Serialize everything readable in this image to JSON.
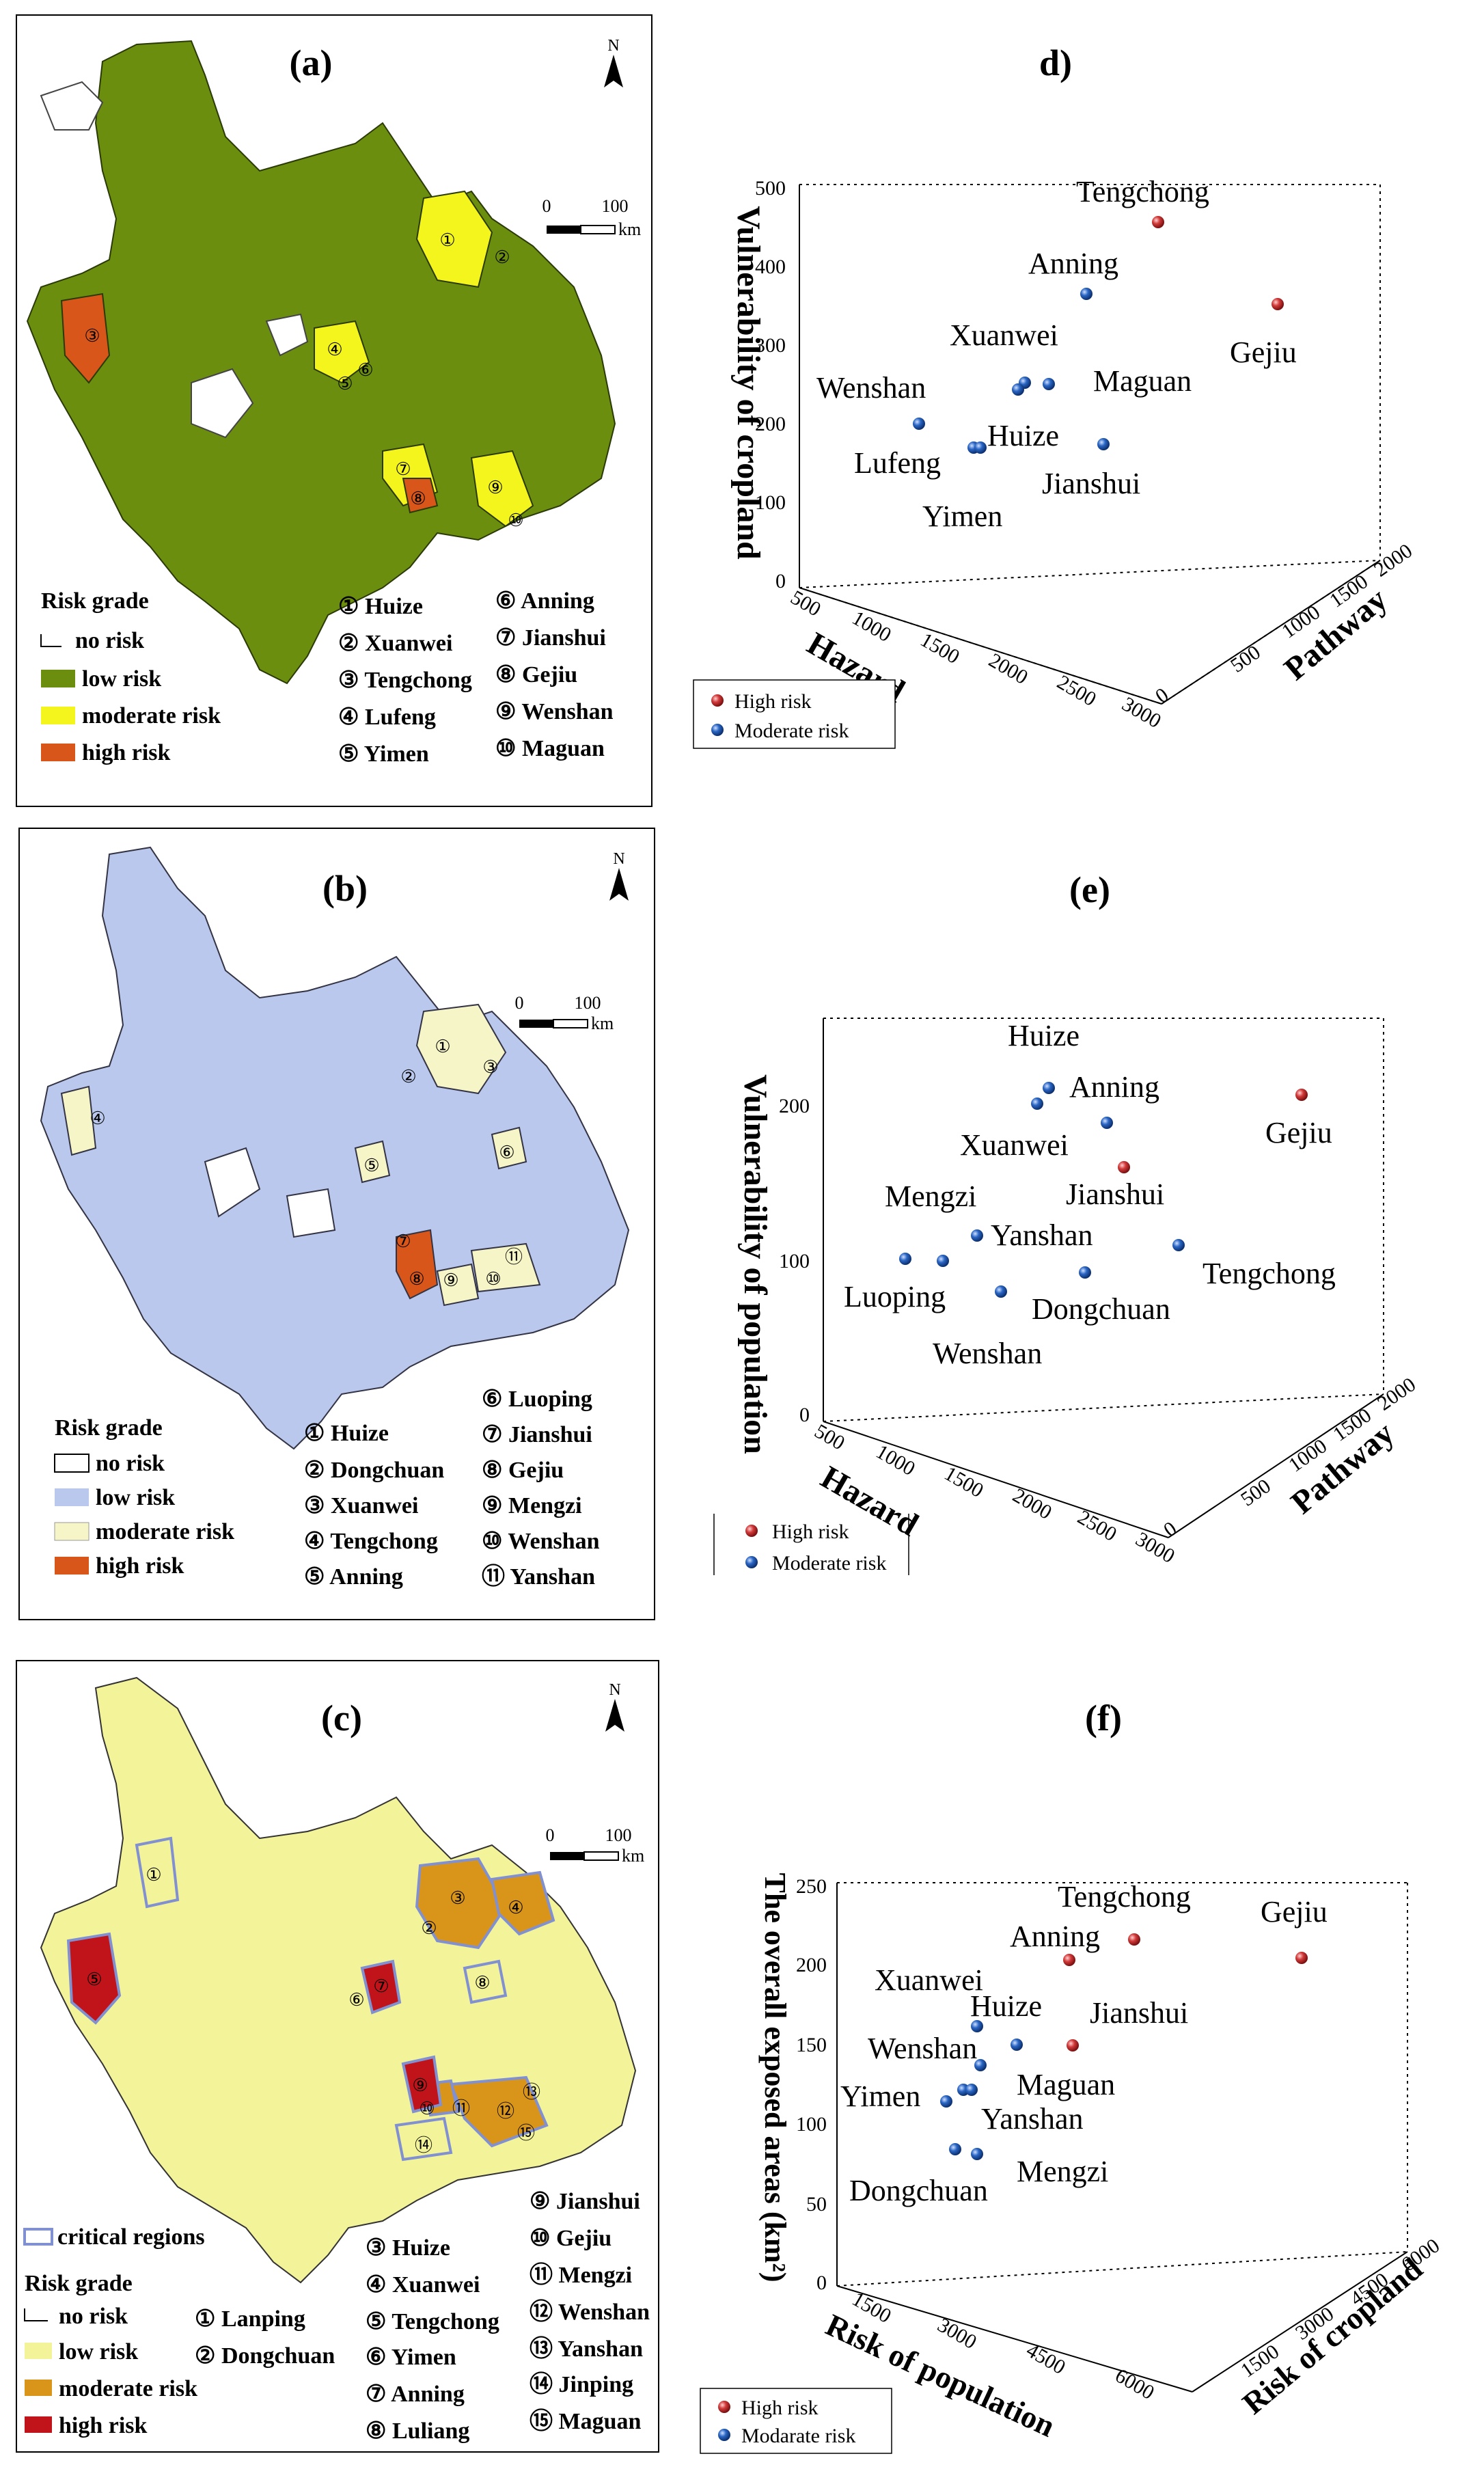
{
  "panels": {
    "a": {
      "tag": "(a)",
      "north": "N",
      "scale_zero": "0",
      "scale_value": "100",
      "scale_unit": "km",
      "legend_title": "Risk grade",
      "legend": [
        "no risk",
        "low risk",
        "moderate risk",
        "high risk"
      ],
      "places": [
        "① Huize",
        "② Xuanwei",
        "③ Tengchong",
        "④ Lufeng",
        "⑤ Yimen",
        "⑥ Anning",
        "⑦ Jianshui",
        "⑧ Gejiu",
        "⑨ Wenshan",
        "⑩ Maguan"
      ],
      "markers": [
        "①",
        "②",
        "③",
        "④",
        "⑤",
        "⑥",
        "⑦",
        "⑧",
        "⑨",
        "⑩"
      ]
    },
    "b": {
      "tag": "(b)",
      "north": "N",
      "scale_zero": "0",
      "scale_value": "100",
      "scale_unit": "km",
      "legend_title": "Risk grade",
      "legend": [
        "no risk",
        "low risk",
        "moderate risk",
        "high risk"
      ],
      "places": [
        "① Huize",
        "② Dongchuan",
        "③ Xuanwei",
        "④ Tengchong",
        "⑤ Anning",
        "⑥ Luoping",
        "⑦ Jianshui",
        "⑧ Gejiu",
        "⑨ Mengzi",
        "⑩ Wenshan",
        "⑪ Yanshan"
      ],
      "markers": [
        "①",
        "②",
        "③",
        "④",
        "⑤",
        "⑥",
        "⑦",
        "⑧",
        "⑨",
        "⑩",
        "⑪"
      ]
    },
    "c": {
      "tag": "(c)",
      "north": "N",
      "scale_zero": "0",
      "scale_value": "100",
      "scale_unit": "km",
      "critical": "critical regions",
      "legend_title": "Risk grade",
      "legend": [
        "no risk",
        "low risk",
        "moderate risk",
        "high risk"
      ],
      "places": [
        "① Lanping",
        "② Dongchuan",
        "③ Huize",
        "④ Xuanwei",
        "⑤ Tengchong",
        "⑥ Yimen",
        "⑦ Anning",
        "⑧ Luliang",
        "⑨ Jianshui",
        "⑩ Gejiu",
        "⑪ Mengzi",
        "⑫ Wenshan",
        "⑬ Yanshan",
        "⑭ Jinping",
        "⑮ Maguan"
      ],
      "markers": [
        "①",
        "②",
        "③",
        "④",
        "⑤",
        "⑥",
        "⑦",
        "⑧",
        "⑨",
        "⑩",
        "⑪",
        "⑫",
        "⑬",
        "⑭",
        "⑮"
      ]
    },
    "d": {
      "tag": "d)",
      "zlabel": "Vulnerability of cropland",
      "xlabel": "Hazard",
      "ylabel": "Pathway",
      "zticks": [
        "500",
        "400",
        "300",
        "200",
        "100",
        "0"
      ],
      "xticks": [
        "500",
        "1000",
        "1500",
        "2000",
        "2500",
        "3000"
      ],
      "yticks": [
        "2000",
        "1500",
        "1000",
        "500",
        "0"
      ],
      "legend": [
        "High risk",
        "Moderate risk"
      ],
      "points": [
        "Tengchong",
        "Anning",
        "Gejiu",
        "Xuanwei",
        "Maguan",
        "Wenshan",
        "Huize",
        "Lufeng",
        "Jianshui",
        "Yimen"
      ]
    },
    "e": {
      "tag": "(e)",
      "zlabel": "Vulnerability of population",
      "xlabel": "Hazard",
      "ylabel": "Pathway",
      "zticks": [
        "200",
        "100",
        "0"
      ],
      "xticks": [
        "500",
        "1000",
        "1500",
        "2000",
        "2500",
        "3000"
      ],
      "yticks": [
        "2000",
        "1500",
        "1000",
        "500",
        "0"
      ],
      "legend": [
        "High risk",
        "Moderate risk"
      ],
      "points": [
        "Huize",
        "Anning",
        "Xuanwei",
        "Gejiu",
        "Jianshui",
        "Mengzi",
        "Yanshan",
        "Tengchong",
        "Luoping",
        "Dongchuan",
        "Wenshan"
      ]
    },
    "f": {
      "tag": "(f)",
      "zlabel": "The overall exposed areas (km²)",
      "xlabel": "Risk of population",
      "ylabel": "Risk of cropland",
      "zticks": [
        "250",
        "200",
        "150",
        "100",
        "50",
        "0"
      ],
      "xticks": [
        "1500",
        "3000",
        "4500",
        "6000"
      ],
      "yticks": [
        "6000",
        "4500",
        "3000",
        "1500"
      ],
      "legend": [
        "High risk",
        "Modarate risk"
      ],
      "points": [
        "Tengchong",
        "Gejiu",
        "Anning",
        "Xuanwei",
        "Huize",
        "Jianshui",
        "Wenshan",
        "Maguan",
        "Yimen",
        "Yanshan",
        "Dongchuan",
        "Mengzi"
      ]
    }
  },
  "colors": {
    "a_low": "#6b8e0f",
    "a_mod": "#f5f51e",
    "a_high": "#d9561a",
    "b_low": "#b9c8ec",
    "b_mod": "#f6f5c8",
    "b_high": "#d9561a",
    "c_low": "#f3f39a",
    "c_mod": "#d8951a",
    "c_high": "#c0141a",
    "critical": "#8090d0",
    "high_ball": "#d23a3a",
    "mod_ball": "#2a66c4"
  }
}
